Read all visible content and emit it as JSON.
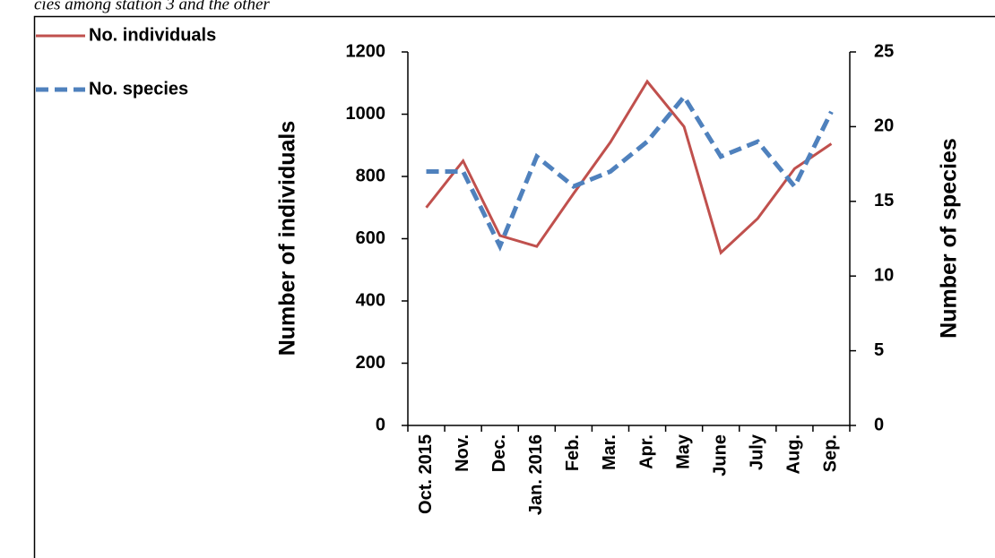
{
  "document_text": "cies among station 3 and the other",
  "chart_data": {
    "type": "line",
    "categories": [
      "Oct. 2015",
      "Nov.",
      "Dec.",
      "Jan. 2016",
      "Feb.",
      "Mar.",
      "Apr.",
      "May",
      "June",
      "July",
      "Aug.",
      "Sep."
    ],
    "series": [
      {
        "name": "No. individuals",
        "color": "#c0504d",
        "dash": false,
        "values": [
          700,
          850,
          610,
          575,
          745,
          910,
          1105,
          960,
          555,
          665,
          825,
          905
        ]
      },
      {
        "name": "No. species",
        "color": "#4f81bd",
        "dash": true,
        "axis": "y2",
        "values": [
          17,
          17,
          12,
          18,
          16,
          17,
          19,
          22,
          18,
          19,
          16,
          21
        ]
      }
    ],
    "y_label": "Number of individuals",
    "y2_label": "Number of species",
    "ylim": [
      0,
      1200
    ],
    "yticks": [
      0,
      200,
      400,
      600,
      800,
      1000,
      1200
    ],
    "y2lim": [
      0,
      25
    ],
    "y2ticks": [
      0,
      5,
      10,
      15,
      20,
      25
    ],
    "legend": "top-left",
    "grid": false
  }
}
